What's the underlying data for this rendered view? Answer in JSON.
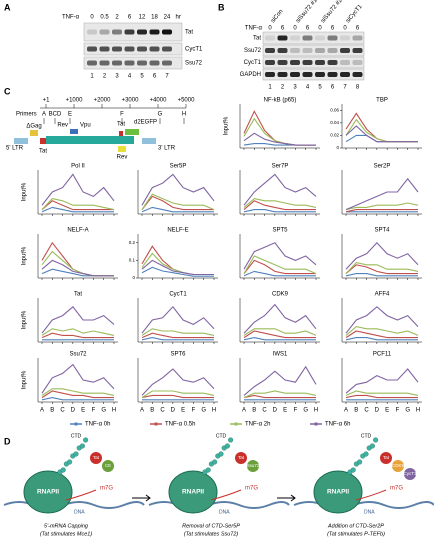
{
  "panel_a": {
    "letter": "A",
    "treatment": "TNF-α",
    "times": [
      "0",
      "0.5",
      "2",
      "6",
      "12",
      "18",
      "24"
    ],
    "unit": "hr",
    "rows": [
      "Tat",
      "CycT1",
      "Ssu72"
    ],
    "lanes": [
      "1",
      "2",
      "3",
      "4",
      "5",
      "6",
      "7"
    ]
  },
  "panel_b": {
    "letter": "B",
    "conditions": [
      "siCon",
      "siSsu72 #1",
      "siSsu72 #2",
      "siCycT1"
    ],
    "treatment": "TNF-α",
    "times": [
      "0",
      "6",
      "0",
      "6",
      "0",
      "6",
      "0",
      "6"
    ],
    "rows": [
      "Tat",
      "Ssu72",
      "CycT1",
      "GAPDH"
    ],
    "lanes": [
      "1",
      "2",
      "3",
      "4",
      "5",
      "6",
      "7",
      "8"
    ]
  },
  "panel_c": {
    "letter": "C",
    "map": {
      "positions": [
        "+1",
        "+1000",
        "+2000",
        "+3000",
        "+4000",
        "+5000"
      ],
      "primers_label": "Primers",
      "primers": [
        "A",
        "BCD",
        "E",
        "F",
        "G",
        "H"
      ],
      "features": [
        "ΔGag",
        "Rev",
        "Vpu",
        "Tat",
        "d2EGFP",
        "5' LTR",
        "Tat",
        "Rev",
        "3' LTR"
      ]
    },
    "y_label": "Input%",
    "categories": [
      "A",
      "B",
      "C",
      "D",
      "E",
      "F",
      "G",
      "H"
    ],
    "legend": [
      {
        "name": "TNF-α 0h",
        "color": "#4f81bd"
      },
      {
        "name": "TNF-α 0.5h",
        "color": "#c0504d"
      },
      {
        "name": "TNF-α 2h",
        "color": "#9bbb59"
      },
      {
        "name": "TNF-α 6h",
        "color": "#8064a2"
      }
    ],
    "charts": [
      {
        "title": "NF-kB (p65)",
        "ylim": [
          0,
          0.3
        ],
        "values": [
          [
            0.02,
            0.03,
            0.03,
            0.02,
            0.02,
            0.02,
            0.02,
            0.02
          ],
          [
            0.1,
            0.25,
            0.12,
            0.05,
            0.03,
            0.02,
            0.02,
            0.02
          ],
          [
            0.08,
            0.2,
            0.1,
            0.05,
            0.03,
            0.02,
            0.02,
            0.02
          ],
          [
            0.05,
            0.1,
            0.06,
            0.04,
            0.03,
            0.02,
            0.02,
            0.02
          ]
        ]
      },
      {
        "title": "TBP",
        "ylim": [
          0,
          0.07
        ],
        "yticks": [
          0,
          0.02,
          0.04,
          0.06
        ],
        "values": [
          [
            0.01,
            0.02,
            0.02,
            0.01,
            0.01,
            0.01,
            0.01,
            0.01
          ],
          [
            0.03,
            0.055,
            0.03,
            0.015,
            0.01,
            0.01,
            0.01,
            0.01
          ],
          [
            0.02,
            0.045,
            0.025,
            0.015,
            0.01,
            0.01,
            0.01,
            0.01
          ],
          [
            0.02,
            0.035,
            0.02,
            0.01,
            0.01,
            0.01,
            0.01,
            0.01
          ]
        ]
      },
      {
        "title": "Pol II",
        "ylim": [
          0,
          1
        ],
        "values": [
          [
            0.05,
            0.15,
            0.1,
            0.05,
            0.05,
            0.05,
            0.05,
            0.05
          ],
          [
            0.1,
            0.3,
            0.2,
            0.1,
            0.1,
            0.1,
            0.1,
            0.1
          ],
          [
            0.1,
            0.35,
            0.3,
            0.2,
            0.2,
            0.2,
            0.15,
            0.1
          ],
          [
            0.2,
            0.5,
            0.6,
            0.9,
            0.5,
            0.4,
            0.6,
            0.3
          ]
        ]
      },
      {
        "title": "Ser5P",
        "ylim": [
          0,
          1
        ],
        "values": [
          [
            0.05,
            0.15,
            0.1,
            0.05,
            0.05,
            0.05,
            0.05,
            0.05
          ],
          [
            0.1,
            0.4,
            0.3,
            0.15,
            0.1,
            0.1,
            0.1,
            0.1
          ],
          [
            0.1,
            0.45,
            0.35,
            0.25,
            0.2,
            0.2,
            0.2,
            0.1
          ],
          [
            0.2,
            0.6,
            0.7,
            0.9,
            0.6,
            0.5,
            0.6,
            0.3
          ]
        ]
      },
      {
        "title": "Ser7P",
        "ylim": [
          0,
          1
        ],
        "values": [
          [
            0.05,
            0.1,
            0.1,
            0.05,
            0.05,
            0.05,
            0.05,
            0.05
          ],
          [
            0.1,
            0.3,
            0.2,
            0.15,
            0.1,
            0.1,
            0.1,
            0.1
          ],
          [
            0.15,
            0.35,
            0.3,
            0.3,
            0.25,
            0.2,
            0.2,
            0.15
          ],
          [
            0.2,
            0.5,
            0.7,
            0.9,
            0.6,
            0.5,
            0.6,
            0.4
          ]
        ]
      },
      {
        "title": "Ser2P",
        "ylim": [
          0,
          1
        ],
        "values": [
          [
            0.05,
            0.05,
            0.05,
            0.05,
            0.05,
            0.05,
            0.05,
            0.05
          ],
          [
            0.05,
            0.1,
            0.1,
            0.1,
            0.1,
            0.1,
            0.1,
            0.1
          ],
          [
            0.1,
            0.15,
            0.15,
            0.2,
            0.2,
            0.2,
            0.25,
            0.2
          ],
          [
            0.1,
            0.2,
            0.3,
            0.4,
            0.5,
            0.5,
            0.8,
            0.5
          ]
        ]
      },
      {
        "title": "NELF-A",
        "ylim": [
          0,
          1
        ],
        "values": [
          [
            0.1,
            0.2,
            0.15,
            0.1,
            0.05,
            0.05,
            0.05,
            0.05
          ],
          [
            0.4,
            0.8,
            0.5,
            0.2,
            0.1,
            0.05,
            0.05,
            0.05
          ],
          [
            0.3,
            0.6,
            0.4,
            0.2,
            0.1,
            0.05,
            0.05,
            0.05
          ],
          [
            0.2,
            0.4,
            0.3,
            0.15,
            0.1,
            0.05,
            0.05,
            0.05
          ]
        ]
      },
      {
        "title": "NELF-E",
        "ylim": [
          0,
          0.25
        ],
        "yticks": [
          0,
          0.1,
          0.2
        ],
        "values": [
          [
            0.03,
            0.06,
            0.04,
            0.03,
            0.02,
            0.01,
            0.01,
            0.01
          ],
          [
            0.08,
            0.18,
            0.1,
            0.05,
            0.03,
            0.02,
            0.02,
            0.02
          ],
          [
            0.06,
            0.14,
            0.08,
            0.05,
            0.03,
            0.02,
            0.02,
            0.02
          ],
          [
            0.05,
            0.1,
            0.07,
            0.04,
            0.03,
            0.02,
            0.02,
            0.02
          ]
        ]
      },
      {
        "title": "SPT5",
        "ylim": [
          0,
          1
        ],
        "values": [
          [
            0.05,
            0.15,
            0.1,
            0.05,
            0.05,
            0.05,
            0.05,
            0.05
          ],
          [
            0.1,
            0.4,
            0.3,
            0.15,
            0.1,
            0.1,
            0.1,
            0.1
          ],
          [
            0.1,
            0.5,
            0.4,
            0.3,
            0.2,
            0.2,
            0.2,
            0.1
          ],
          [
            0.2,
            0.6,
            0.7,
            0.8,
            0.5,
            0.4,
            0.5,
            0.3
          ]
        ]
      },
      {
        "title": "SPT4",
        "ylim": [
          0,
          1
        ],
        "values": [
          [
            0.05,
            0.1,
            0.1,
            0.05,
            0.05,
            0.05,
            0.05,
            0.05
          ],
          [
            0.1,
            0.3,
            0.25,
            0.15,
            0.1,
            0.1,
            0.1,
            0.1
          ],
          [
            0.1,
            0.35,
            0.3,
            0.3,
            0.2,
            0.2,
            0.2,
            0.15
          ],
          [
            0.2,
            0.45,
            0.55,
            0.8,
            0.55,
            0.45,
            0.55,
            0.3
          ]
        ]
      },
      {
        "title": "Tat",
        "ylim": [
          0,
          1
        ],
        "values": [
          [
            0.05,
            0.05,
            0.05,
            0.05,
            0.05,
            0.05,
            0.05,
            0.05
          ],
          [
            0.1,
            0.2,
            0.15,
            0.15,
            0.1,
            0.1,
            0.1,
            0.1
          ],
          [
            0.15,
            0.3,
            0.25,
            0.3,
            0.2,
            0.25,
            0.2,
            0.15
          ],
          [
            0.2,
            0.5,
            0.6,
            0.8,
            0.5,
            0.5,
            0.6,
            0.4
          ]
        ]
      },
      {
        "title": "CycT1",
        "ylim": [
          0,
          1
        ],
        "values": [
          [
            0.05,
            0.1,
            0.05,
            0.05,
            0.05,
            0.05,
            0.05,
            0.05
          ],
          [
            0.1,
            0.2,
            0.15,
            0.1,
            0.1,
            0.1,
            0.1,
            0.1
          ],
          [
            0.15,
            0.3,
            0.25,
            0.25,
            0.2,
            0.2,
            0.2,
            0.15
          ],
          [
            0.2,
            0.5,
            0.55,
            0.8,
            0.5,
            0.4,
            0.55,
            0.3
          ]
        ]
      },
      {
        "title": "CDK9",
        "ylim": [
          0,
          1
        ],
        "values": [
          [
            0.05,
            0.1,
            0.05,
            0.05,
            0.05,
            0.05,
            0.05,
            0.05
          ],
          [
            0.1,
            0.25,
            0.2,
            0.15,
            0.1,
            0.1,
            0.1,
            0.1
          ],
          [
            0.15,
            0.3,
            0.3,
            0.3,
            0.2,
            0.2,
            0.25,
            0.15
          ],
          [
            0.2,
            0.45,
            0.6,
            0.85,
            0.55,
            0.45,
            0.6,
            0.3
          ]
        ]
      },
      {
        "title": "AFF4",
        "ylim": [
          0,
          1
        ],
        "values": [
          [
            0.05,
            0.1,
            0.1,
            0.05,
            0.05,
            0.05,
            0.05,
            0.05
          ],
          [
            0.1,
            0.25,
            0.2,
            0.15,
            0.1,
            0.1,
            0.1,
            0.1
          ],
          [
            0.15,
            0.35,
            0.3,
            0.3,
            0.25,
            0.2,
            0.25,
            0.15
          ],
          [
            0.2,
            0.5,
            0.6,
            0.8,
            0.6,
            0.5,
            0.6,
            0.35
          ]
        ]
      },
      {
        "title": "Ssu72",
        "ylim": [
          0,
          1
        ],
        "values": [
          [
            0.05,
            0.1,
            0.05,
            0.05,
            0.05,
            0.05,
            0.05,
            0.05
          ],
          [
            0.1,
            0.25,
            0.2,
            0.15,
            0.15,
            0.1,
            0.1,
            0.1
          ],
          [
            0.15,
            0.3,
            0.3,
            0.25,
            0.2,
            0.2,
            0.2,
            0.15
          ],
          [
            0.2,
            0.55,
            0.65,
            0.85,
            0.5,
            0.45,
            0.55,
            0.3
          ]
        ]
      },
      {
        "title": "SPT6",
        "ylim": [
          0,
          1
        ],
        "values": [
          [
            0.05,
            0.05,
            0.05,
            0.05,
            0.05,
            0.05,
            0.05,
            0.05
          ],
          [
            0.1,
            0.15,
            0.15,
            0.15,
            0.1,
            0.1,
            0.1,
            0.1
          ],
          [
            0.1,
            0.25,
            0.25,
            0.25,
            0.2,
            0.2,
            0.2,
            0.15
          ],
          [
            0.15,
            0.4,
            0.55,
            0.75,
            0.5,
            0.45,
            0.55,
            0.3
          ]
        ]
      },
      {
        "title": "IWS1",
        "ylim": [
          0,
          1
        ],
        "values": [
          [
            0.05,
            0.05,
            0.05,
            0.05,
            0.05,
            0.05,
            0.05,
            0.05
          ],
          [
            0.1,
            0.15,
            0.1,
            0.1,
            0.1,
            0.1,
            0.1,
            0.1
          ],
          [
            0.1,
            0.2,
            0.2,
            0.25,
            0.2,
            0.2,
            0.2,
            0.15
          ],
          [
            0.15,
            0.35,
            0.5,
            0.7,
            0.5,
            0.45,
            0.8,
            0.4
          ]
        ]
      },
      {
        "title": "PCF11",
        "ylim": [
          0,
          1
        ],
        "values": [
          [
            0.05,
            0.05,
            0.05,
            0.05,
            0.05,
            0.05,
            0.05,
            0.05
          ],
          [
            0.1,
            0.15,
            0.15,
            0.1,
            0.1,
            0.1,
            0.1,
            0.1
          ],
          [
            0.15,
            0.25,
            0.2,
            0.2,
            0.2,
            0.2,
            0.2,
            0.15
          ],
          [
            0.2,
            0.4,
            0.45,
            0.6,
            0.5,
            0.5,
            0.75,
            0.45
          ]
        ]
      }
    ]
  },
  "panel_d": {
    "letter": "D",
    "rnapii": "RNAPII",
    "ctd": "CTD",
    "dna": "DNA",
    "cap": "m7G",
    "steps": [
      {
        "title": "5'-mRNA Capping",
        "subtitle": "(Tat stimulates Mce1)",
        "factors": [
          "Tat",
          "CE"
        ]
      },
      {
        "title": "Removal of CTD-Ser5P",
        "subtitle": "(Tat stimulates Ssu72)",
        "factors": [
          "Tat",
          "Ssu72"
        ]
      },
      {
        "title": "Addition of CTD-Ser2P",
        "subtitle": "(Tat stimulates P-TEFb)",
        "factors": [
          "Tat",
          "CDK9",
          "CycT1"
        ]
      }
    ]
  }
}
